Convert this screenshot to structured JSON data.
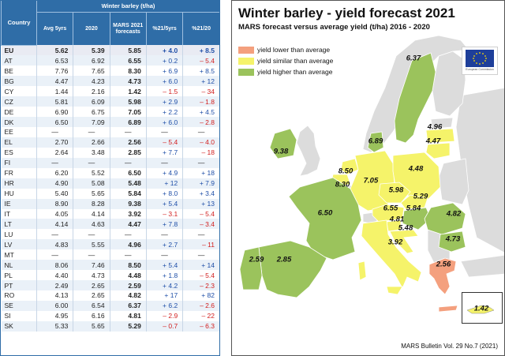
{
  "table": {
    "group_header": "Winter barley (t/ha)",
    "col_country": "Country",
    "col_avg": "Avg 5yrs",
    "col_2020": "2020",
    "col_forecast": "MARS 2021 forecasts",
    "col_pct5": "%21/5yrs",
    "col_pct20": "%21/20",
    "rows": [
      {
        "c": "EU",
        "a": "5.62",
        "p": "5.39",
        "f": "5.85",
        "d5": "+ 4.0",
        "d20": "+ 8.5"
      },
      {
        "c": "AT",
        "a": "6.53",
        "p": "6.92",
        "f": "6.55",
        "d5": "+ 0.2",
        "d20": "– 5.4"
      },
      {
        "c": "BE",
        "a": "7.76",
        "p": "7.65",
        "f": "8.30",
        "d5": "+ 6.9",
        "d20": "+ 8.5"
      },
      {
        "c": "BG",
        "a": "4.47",
        "p": "4.23",
        "f": "4.73",
        "d5": "+ 6.0",
        "d20": "+ 12"
      },
      {
        "c": "CY",
        "a": "1.44",
        "p": "2.16",
        "f": "1.42",
        "d5": "– 1.5",
        "d20": "– 34"
      },
      {
        "c": "CZ",
        "a": "5.81",
        "p": "6.09",
        "f": "5.98",
        "d5": "+ 2.9",
        "d20": "– 1.8"
      },
      {
        "c": "DE",
        "a": "6.90",
        "p": "6.75",
        "f": "7.05",
        "d5": "+ 2.2",
        "d20": "+ 4.5"
      },
      {
        "c": "DK",
        "a": "6.50",
        "p": "7.09",
        "f": "6.89",
        "d5": "+ 6.0",
        "d20": "– 2.8"
      },
      {
        "c": "EE",
        "a": "—",
        "p": "—",
        "f": "—",
        "d5": "—",
        "d20": "—"
      },
      {
        "c": "EL",
        "a": "2.70",
        "p": "2.66",
        "f": "2.56",
        "d5": "– 5.4",
        "d20": "– 4.0"
      },
      {
        "c": "ES",
        "a": "2.64",
        "p": "3.48",
        "f": "2.85",
        "d5": "+ 7.7",
        "d20": "– 18"
      },
      {
        "c": "FI",
        "a": "—",
        "p": "—",
        "f": "—",
        "d5": "—",
        "d20": "—"
      },
      {
        "c": "FR",
        "a": "6.20",
        "p": "5.52",
        "f": "6.50",
        "d5": "+ 4.9",
        "d20": "+ 18"
      },
      {
        "c": "HR",
        "a": "4.90",
        "p": "5.08",
        "f": "5.48",
        "d5": "+ 12",
        "d20": "+ 7.9"
      },
      {
        "c": "HU",
        "a": "5.40",
        "p": "5.65",
        "f": "5.84",
        "d5": "+ 8.0",
        "d20": "+ 3.4"
      },
      {
        "c": "IE",
        "a": "8.90",
        "p": "8.28",
        "f": "9.38",
        "d5": "+ 5.4",
        "d20": "+ 13"
      },
      {
        "c": "IT",
        "a": "4.05",
        "p": "4.14",
        "f": "3.92",
        "d5": "– 3.1",
        "d20": "– 5.4"
      },
      {
        "c": "LT",
        "a": "4.14",
        "p": "4.63",
        "f": "4.47",
        "d5": "+ 7.8",
        "d20": "– 3.4"
      },
      {
        "c": "LU",
        "a": "—",
        "p": "—",
        "f": "—",
        "d5": "—",
        "d20": "—"
      },
      {
        "c": "LV",
        "a": "4.83",
        "p": "5.55",
        "f": "4.96",
        "d5": "+ 2.7",
        "d20": "– 11"
      },
      {
        "c": "MT",
        "a": "—",
        "p": "—",
        "f": "—",
        "d5": "—",
        "d20": "—"
      },
      {
        "c": "NL",
        "a": "8.06",
        "p": "7.46",
        "f": "8.50",
        "d5": "+ 5.4",
        "d20": "+ 14"
      },
      {
        "c": "PL",
        "a": "4.40",
        "p": "4.73",
        "f": "4.48",
        "d5": "+ 1.8",
        "d20": "– 5.4"
      },
      {
        "c": "PT",
        "a": "2.49",
        "p": "2.65",
        "f": "2.59",
        "d5": "+ 4.2",
        "d20": "– 2.3"
      },
      {
        "c": "RO",
        "a": "4.13",
        "p": "2.65",
        "f": "4.82",
        "d5": "+ 17",
        "d20": "+ 82"
      },
      {
        "c": "SE",
        "a": "6.00",
        "p": "6.54",
        "f": "6.37",
        "d5": "+ 6.2",
        "d20": "– 2.6"
      },
      {
        "c": "SI",
        "a": "4.95",
        "p": "6.16",
        "f": "4.81",
        "d5": "– 2.9",
        "d20": "– 22"
      },
      {
        "c": "SK",
        "a": "5.33",
        "p": "5.65",
        "f": "5.29",
        "d5": "– 0.7",
        "d20": "– 6.3"
      }
    ]
  },
  "map": {
    "title": "Winter barley - yield forecast 2021",
    "subtitle": "MARS forecast versus average yield (t/ha) 2016 - 2020",
    "legend": [
      {
        "label": "yield lower than average",
        "color": "#f4a07e"
      },
      {
        "label": "yield similar than average",
        "color": "#f5f36a"
      },
      {
        "label": "yield higher than average",
        "color": "#9bc35c"
      }
    ],
    "colors": {
      "sea": "#ffffff",
      "nodata": "#dcdcdc",
      "lower": "#f4a07e",
      "similar": "#f5f36a",
      "higher": "#9bc35c",
      "border": "#ffffff"
    },
    "logo_caption": "European Commission",
    "labels": {
      "SE": "6.37",
      "LV": "4.96",
      "LT": "4.47",
      "DK": "6.89",
      "IE": "9.38",
      "NL": "8.50",
      "BE": "8.30",
      "DE": "7.05",
      "PL": "4.48",
      "CZ": "5.98",
      "SK": "5.29",
      "AT": "6.55",
      "HU": "5.84",
      "FR": "6.50",
      "SI": "4.81",
      "HR": "5.48",
      "RO": "4.82",
      "BG": "4.73",
      "IT": "3.92",
      "PT": "2.59",
      "ES": "2.85",
      "EL": "2.56",
      "CY": "1.42"
    },
    "footer": "MARS Bulletin Vol. 29 No.7 (2021)"
  }
}
